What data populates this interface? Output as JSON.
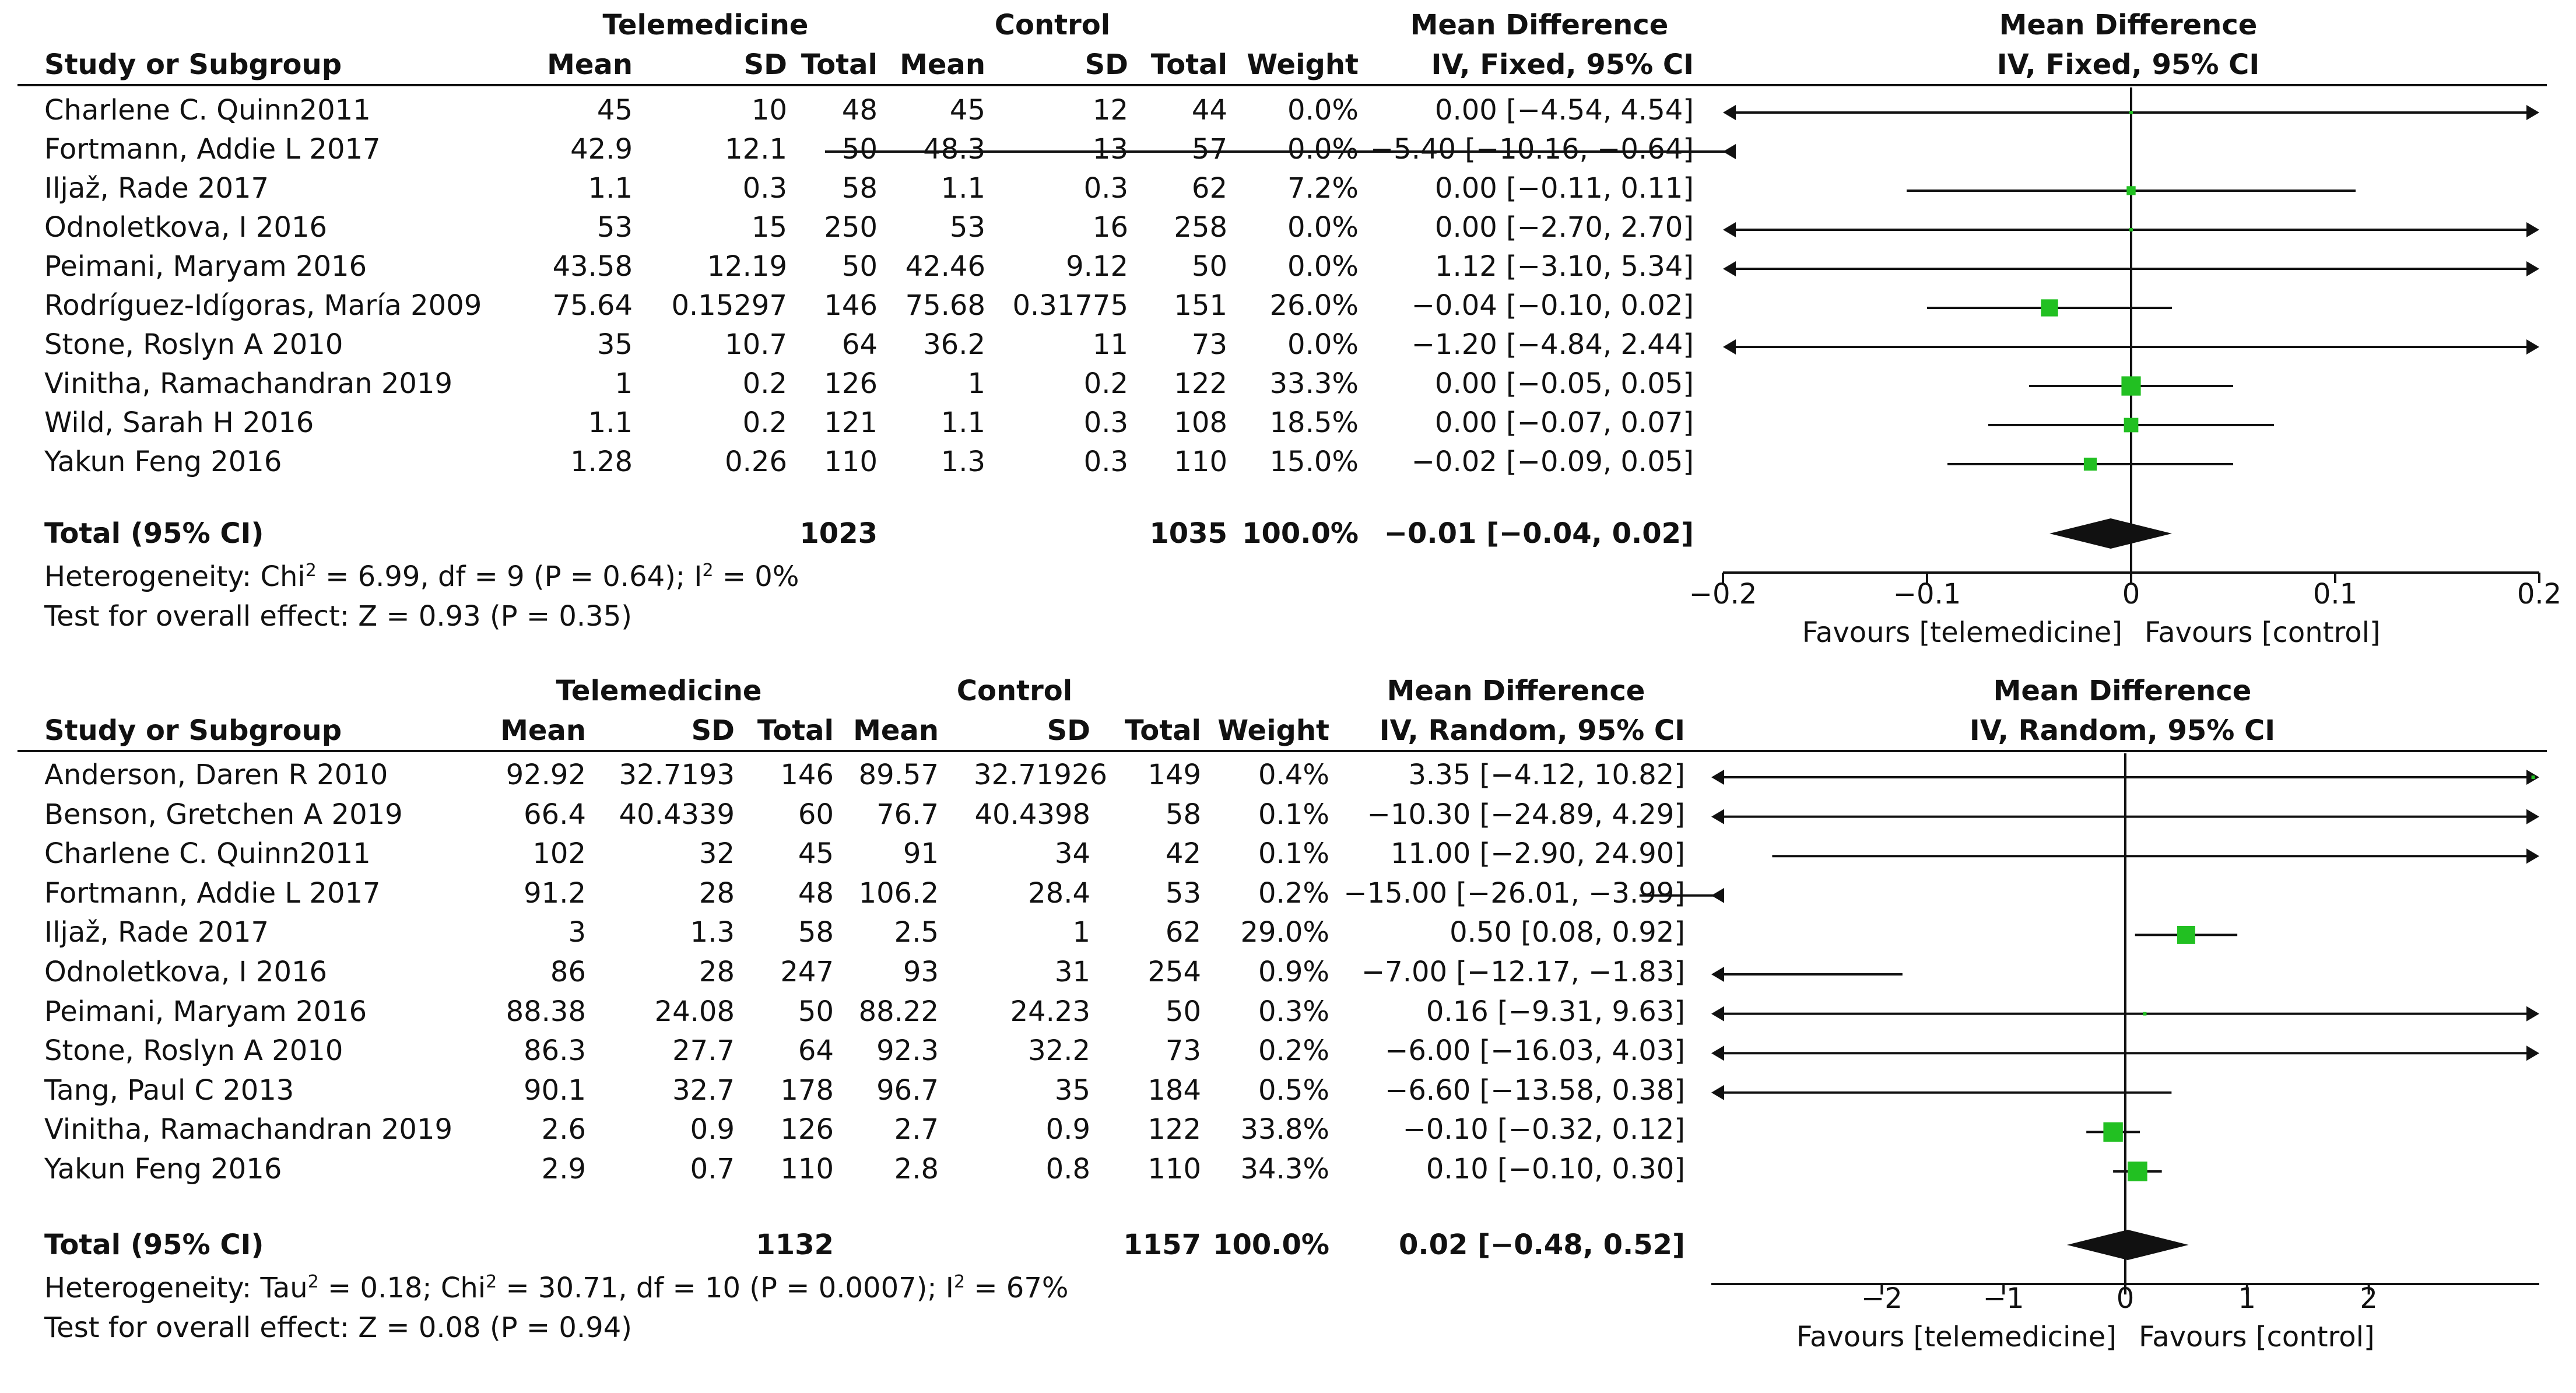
{
  "colors": {
    "marker": "#22c022",
    "line": "#111111",
    "text": "#111111"
  },
  "labels": {
    "study_or_subgroup": "Study or Subgroup",
    "mean": "Mean",
    "sd": "SD",
    "total": "Total",
    "weight": "Weight",
    "mean_difference": "Mean Difference"
  },
  "chart_data": [
    {
      "type": "forest",
      "title": "Mean Difference",
      "group_exp": "Telemedicine",
      "group_ctrl": "Control",
      "effect_header": "IV, Fixed, 95% CI",
      "studies": [
        {
          "name": "Charlene C. Quinn2011",
          "exp_mean": "45",
          "exp_sd": "10",
          "exp_total": "48",
          "ctrl_mean": "45",
          "ctrl_sd": "12",
          "ctrl_total": "44",
          "weight": "0.0%",
          "ci_text": "0.00 [−4.54, 4.54]",
          "md": 0.0,
          "lo": -4.54,
          "hi": 4.54,
          "w": 0.0
        },
        {
          "name": "Fortmann, Addie L 2017",
          "exp_mean": "42.9",
          "exp_sd": "12.1",
          "exp_total": "50",
          "ctrl_mean": "48.3",
          "ctrl_sd": "13",
          "ctrl_total": "57",
          "weight": "0.0%",
          "ci_text": "−5.40 [−10.16, −0.64]",
          "md": -5.4,
          "lo": -10.16,
          "hi": -0.64,
          "w": 0.0
        },
        {
          "name": "Iljaž, Rade 2017",
          "exp_mean": "1.1",
          "exp_sd": "0.3",
          "exp_total": "58",
          "ctrl_mean": "1.1",
          "ctrl_sd": "0.3",
          "ctrl_total": "62",
          "weight": "7.2%",
          "ci_text": "0.00 [−0.11, 0.11]",
          "md": 0.0,
          "lo": -0.11,
          "hi": 0.11,
          "w": 7.2
        },
        {
          "name": "Odnoletkova, I 2016",
          "exp_mean": "53",
          "exp_sd": "15",
          "exp_total": "250",
          "ctrl_mean": "53",
          "ctrl_sd": "16",
          "ctrl_total": "258",
          "weight": "0.0%",
          "ci_text": "0.00 [−2.70, 2.70]",
          "md": 0.0,
          "lo": -2.7,
          "hi": 2.7,
          "w": 0.0
        },
        {
          "name": "Peimani, Maryam 2016",
          "exp_mean": "43.58",
          "exp_sd": "12.19",
          "exp_total": "50",
          "ctrl_mean": "42.46",
          "ctrl_sd": "9.12",
          "ctrl_total": "50",
          "weight": "0.0%",
          "ci_text": "1.12 [−3.10, 5.34]",
          "md": 1.12,
          "lo": -3.1,
          "hi": 5.34,
          "w": 0.0
        },
        {
          "name": "Rodríguez-Idígoras, María 2009",
          "exp_mean": "75.64",
          "exp_sd": "0.15297",
          "exp_total": "146",
          "ctrl_mean": "75.68",
          "ctrl_sd": "0.31775",
          "ctrl_total": "151",
          "weight": "26.0%",
          "ci_text": "−0.04 [−0.10, 0.02]",
          "md": -0.04,
          "lo": -0.1,
          "hi": 0.02,
          "w": 26.0
        },
        {
          "name": "Stone, Roslyn A 2010",
          "exp_mean": "35",
          "exp_sd": "10.7",
          "exp_total": "64",
          "ctrl_mean": "36.2",
          "ctrl_sd": "11",
          "ctrl_total": "73",
          "weight": "0.0%",
          "ci_text": "−1.20 [−4.84, 2.44]",
          "md": -1.2,
          "lo": -4.84,
          "hi": 2.44,
          "w": 0.0
        },
        {
          "name": "Vinitha, Ramachandran 2019",
          "exp_mean": "1",
          "exp_sd": "0.2",
          "exp_total": "126",
          "ctrl_mean": "1",
          "ctrl_sd": "0.2",
          "ctrl_total": "122",
          "weight": "33.3%",
          "ci_text": "0.00 [−0.05, 0.05]",
          "md": 0.0,
          "lo": -0.05,
          "hi": 0.05,
          "w": 33.3
        },
        {
          "name": "Wild, Sarah H 2016",
          "exp_mean": "1.1",
          "exp_sd": "0.2",
          "exp_total": "121",
          "ctrl_mean": "1.1",
          "ctrl_sd": "0.3",
          "ctrl_total": "108",
          "weight": "18.5%",
          "ci_text": "0.00 [−0.07, 0.07]",
          "md": 0.0,
          "lo": -0.07,
          "hi": 0.07,
          "w": 18.5
        },
        {
          "name": "Yakun Feng 2016",
          "exp_mean": "1.28",
          "exp_sd": "0.26",
          "exp_total": "110",
          "ctrl_mean": "1.3",
          "ctrl_sd": "0.3",
          "ctrl_total": "110",
          "weight": "15.0%",
          "ci_text": "−0.02 [−0.09, 0.05]",
          "md": -0.02,
          "lo": -0.09,
          "hi": 0.05,
          "w": 15.0
        }
      ],
      "total": {
        "label": "Total (95% CI)",
        "exp_total": "1023",
        "ctrl_total": "1035",
        "weight": "100.0%",
        "ci_text": "−0.01 [−0.04, 0.02]",
        "md": -0.01,
        "lo": -0.04,
        "hi": 0.02
      },
      "heterogeneity_prefix": "Heterogeneity: Chi",
      "heterogeneity_rest": " = 6.99, df = 9 (P = 0.64); I",
      "heterogeneity_end": " = 0%",
      "overall_effect": "Test for overall effect: Z = 0.93 (P = 0.35)",
      "xlim": [
        -0.2,
        0.2
      ],
      "ticks": [
        -0.2,
        -0.1,
        0,
        0.1,
        0.2
      ],
      "tick_labels": [
        "−0.2",
        "−0.1",
        "0",
        "0.1",
        "0.2"
      ],
      "favours_left": "Favours [telemedicine]",
      "favours_right": "Favours [control]"
    },
    {
      "type": "forest",
      "title": "Mean Difference",
      "group_exp": "Telemedicine",
      "group_ctrl": "Control",
      "effect_header": "IV, Random, 95% CI",
      "studies": [
        {
          "name": "Anderson, Daren R 2010",
          "exp_mean": "92.92",
          "exp_sd": "32.7193",
          "exp_total": "146",
          "ctrl_mean": "89.57",
          "ctrl_sd": "32.71926",
          "ctrl_total": "149",
          "weight": "0.4%",
          "ci_text": "3.35 [−4.12, 10.82]",
          "md": 3.35,
          "lo": -4.12,
          "hi": 10.82,
          "w": 0.4
        },
        {
          "name": "Benson, Gretchen A 2019",
          "exp_mean": "66.4",
          "exp_sd": "40.4339",
          "exp_total": "60",
          "ctrl_mean": "76.7",
          "ctrl_sd": "40.4398",
          "ctrl_total": "58",
          "weight": "0.1%",
          "ci_text": "−10.30 [−24.89, 4.29]",
          "md": -10.3,
          "lo": -24.89,
          "hi": 4.29,
          "w": 0.1
        },
        {
          "name": "Charlene C. Quinn2011",
          "exp_mean": "102",
          "exp_sd": "32",
          "exp_total": "45",
          "ctrl_mean": "91",
          "ctrl_sd": "34",
          "ctrl_total": "42",
          "weight": "0.1%",
          "ci_text": "11.00 [−2.90, 24.90]",
          "md": 11.0,
          "lo": -2.9,
          "hi": 24.9,
          "w": 0.1
        },
        {
          "name": "Fortmann, Addie L 2017",
          "exp_mean": "91.2",
          "exp_sd": "28",
          "exp_total": "48",
          "ctrl_mean": "106.2",
          "ctrl_sd": "28.4",
          "ctrl_total": "53",
          "weight": "0.2%",
          "ci_text": "−15.00 [−26.01, −3.99]",
          "md": -15.0,
          "lo": -26.01,
          "hi": -3.99,
          "w": 0.2
        },
        {
          "name": "Iljaž, Rade 2017",
          "exp_mean": "3",
          "exp_sd": "1.3",
          "exp_total": "58",
          "ctrl_mean": "2.5",
          "ctrl_sd": "1",
          "ctrl_total": "62",
          "weight": "29.0%",
          "ci_text": "0.50 [0.08, 0.92]",
          "md": 0.5,
          "lo": 0.08,
          "hi": 0.92,
          "w": 29.0
        },
        {
          "name": "Odnoletkova, I 2016",
          "exp_mean": "86",
          "exp_sd": "28",
          "exp_total": "247",
          "ctrl_mean": "93",
          "ctrl_sd": "31",
          "ctrl_total": "254",
          "weight": "0.9%",
          "ci_text": "−7.00 [−12.17, −1.83]",
          "md": -7.0,
          "lo": -12.17,
          "hi": -1.83,
          "w": 0.9
        },
        {
          "name": "Peimani, Maryam 2016",
          "exp_mean": "88.38",
          "exp_sd": "24.08",
          "exp_total": "50",
          "ctrl_mean": "88.22",
          "ctrl_sd": "24.23",
          "ctrl_total": "50",
          "weight": "0.3%",
          "ci_text": "0.16 [−9.31, 9.63]",
          "md": 0.16,
          "lo": -9.31,
          "hi": 9.63,
          "w": 0.3
        },
        {
          "name": "Stone, Roslyn A 2010",
          "exp_mean": "86.3",
          "exp_sd": "27.7",
          "exp_total": "64",
          "ctrl_mean": "92.3",
          "ctrl_sd": "32.2",
          "ctrl_total": "73",
          "weight": "0.2%",
          "ci_text": "−6.00 [−16.03, 4.03]",
          "md": -6.0,
          "lo": -16.03,
          "hi": 4.03,
          "w": 0.2
        },
        {
          "name": "Tang, Paul C 2013",
          "exp_mean": "90.1",
          "exp_sd": "32.7",
          "exp_total": "178",
          "ctrl_mean": "96.7",
          "ctrl_sd": "35",
          "ctrl_total": "184",
          "weight": "0.5%",
          "ci_text": "−6.60 [−13.58, 0.38]",
          "md": -6.6,
          "lo": -13.58,
          "hi": 0.38,
          "w": 0.5
        },
        {
          "name": "Vinitha, Ramachandran 2019",
          "exp_mean": "2.6",
          "exp_sd": "0.9",
          "exp_total": "126",
          "ctrl_mean": "2.7",
          "ctrl_sd": "0.9",
          "ctrl_total": "122",
          "weight": "33.8%",
          "ci_text": "−0.10 [−0.32, 0.12]",
          "md": -0.1,
          "lo": -0.32,
          "hi": 0.12,
          "w": 33.8
        },
        {
          "name": "Yakun Feng 2016",
          "exp_mean": "2.9",
          "exp_sd": "0.7",
          "exp_total": "110",
          "ctrl_mean": "2.8",
          "ctrl_sd": "0.8",
          "ctrl_total": "110",
          "weight": "34.3%",
          "ci_text": "0.10 [−0.10, 0.30]",
          "md": 0.1,
          "lo": -0.1,
          "hi": 0.3,
          "w": 34.3
        }
      ],
      "total": {
        "label": "Total (95% CI)",
        "exp_total": "1132",
        "ctrl_total": "1157",
        "weight": "100.0%",
        "ci_text": "0.02 [−0.48, 0.52]",
        "md": 0.02,
        "lo": -0.48,
        "hi": 0.52
      },
      "heterogeneity_prefix": "Heterogeneity: Tau",
      "heterogeneity_rest": " = 0.18; Chi",
      "heterogeneity_rest2": " = 30.71, df = 10 (P = 0.0007); I",
      "heterogeneity_end": " = 67%",
      "overall_effect": "Test for overall effect: Z = 0.08 (P = 0.94)",
      "xlim": [
        -3.4,
        3.4
      ],
      "ticks": [
        -2,
        -1,
        0,
        1,
        2
      ],
      "tick_labels": [
        "−2",
        "−1",
        "0",
        "1",
        "2"
      ],
      "favours_left": "Favours [telemedicine]",
      "favours_right": "Favours [control]"
    }
  ]
}
